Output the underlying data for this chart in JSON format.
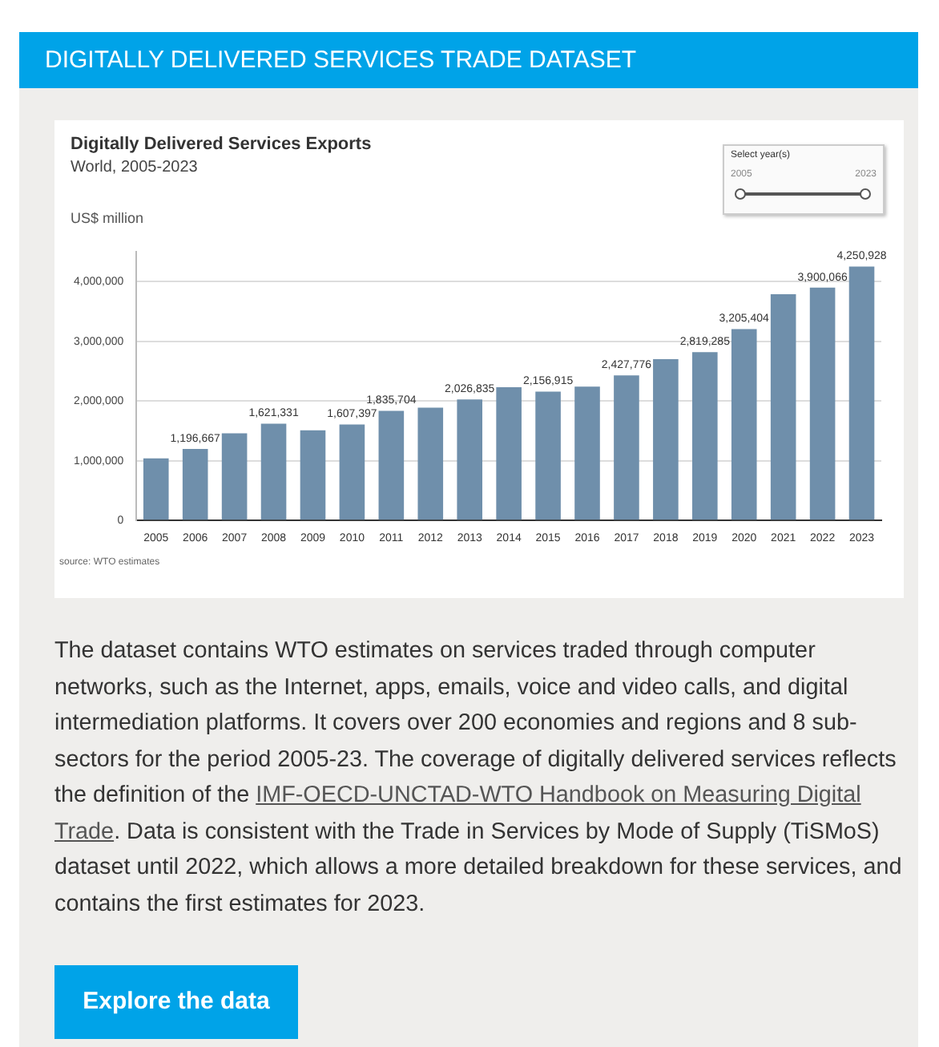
{
  "chart_data": {
    "type": "bar",
    "title": "Digitally Delivered Services Exports",
    "subtitle": "World, 2005-2023",
    "ylabel": "US$ million",
    "categories": [
      "2005",
      "2006",
      "2007",
      "2008",
      "2009",
      "2010",
      "2011",
      "2012",
      "2013",
      "2014",
      "2015",
      "2016",
      "2017",
      "2018",
      "2019",
      "2020",
      "2021",
      "2022",
      "2023"
    ],
    "values": [
      1040000,
      1196667,
      1460000,
      1621331,
      1510000,
      1607397,
      1835704,
      1890000,
      2026835,
      2230000,
      2156915,
      2240000,
      2427776,
      2700000,
      2819285,
      3205404,
      3790000,
      3900066,
      4250928
    ],
    "value_labels": [
      null,
      "1,196,667",
      null,
      "1,621,331",
      null,
      "1,607,397",
      "1,835,704",
      null,
      "2,026,835",
      null,
      "2,156,915",
      null,
      "2,427,776",
      null,
      "2,819,285",
      "3,205,404",
      null,
      "3,900,066",
      "4,250,928"
    ],
    "color": "#6f8fab",
    "ylim": [
      0,
      4500000
    ],
    "yticks": [
      0,
      {
        "value": 1000000,
        "label": "1,000,000"
      },
      {
        "value": 2000000,
        "label": "2,000,000"
      },
      {
        "value": 3000000,
        "label": "3,000,000"
      },
      {
        "value": 4000000,
        "label": "4,000,000"
      }
    ],
    "grid": "y",
    "legend": false,
    "annotations": [
      "source: WTO estimates",
      "Select year(s)",
      "2005",
      "2023",
      "DIGITALLY DELIVERED SERVICES TRADE DATASET",
      "The dataset contains WTO estimates on services traded through computer networks, such as the Internet, apps, emails, voice and video calls, and digital intermediation platforms. It covers over 200 economies and regions and 8 sub-sectors for the period 2005-23. The coverage of digitally delivered services reflects the definition of the ",
      "IMF-OECD-UNCTAD-WTO Handbook on Measuring Digital Trade",
      ". Data is consistent with the Trade in Services by Mode of Supply (TiSMoS) dataset until 2022, which allows a more detailed breakdown for these services, and contains the first estimates for 2023.",
      "Explore the data"
    ]
  }
}
